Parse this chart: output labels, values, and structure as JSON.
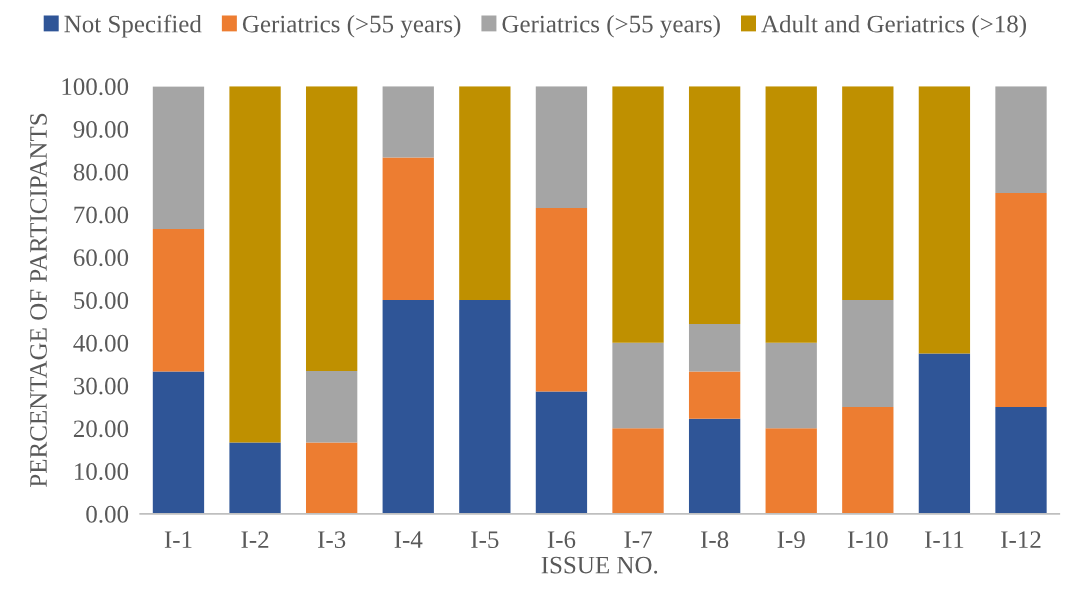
{
  "chart_data": {
    "type": "bar",
    "stacked": true,
    "xlabel": "ISSUE NO.",
    "ylabel": "PERCENTAGE OF PARTICIPANTS",
    "categories": [
      "I-1",
      "I-2",
      "I-3",
      "I-4",
      "I-5",
      "I-6",
      "I-7",
      "I-8",
      "I-9",
      "I-10",
      "I-11",
      "I-12"
    ],
    "series": [
      {
        "name": "Not Specified",
        "color": "#2f5597",
        "values": [
          33.3,
          16.7,
          null,
          50,
          50,
          28.6,
          null,
          22.2,
          null,
          null,
          37.5,
          25
        ]
      },
      {
        "name": "Geriatrics (>55 years)",
        "color": "#ed7d31",
        "values": [
          33.3,
          null,
          16.7,
          33.3,
          null,
          42.9,
          20,
          11.1,
          20,
          25,
          null,
          50
        ]
      },
      {
        "name": "Geriatrics (>55 years)",
        "color": "#a5a5a5",
        "values": [
          33.3,
          null,
          16.7,
          16.7,
          null,
          28.5,
          20,
          11.1,
          20,
          25,
          null,
          25
        ]
      },
      {
        "name": "Adult and Geriatrics (>18)",
        "color": "#bf9000",
        "values": [
          null,
          83.3,
          66.6,
          null,
          50,
          null,
          60,
          55.6,
          60,
          50,
          62.5,
          null
        ]
      }
    ],
    "ylim": [
      0,
      100
    ],
    "yticks": [
      {
        "value": 0,
        "label": "0.00"
      },
      {
        "value": 10,
        "label": "10.00"
      },
      {
        "value": 20,
        "label": "20.00"
      },
      {
        "value": 30,
        "label": "30.00"
      },
      {
        "value": 40,
        "label": "40.00"
      },
      {
        "value": 50,
        "label": "50.00"
      },
      {
        "value": 60,
        "label": "60.00"
      },
      {
        "value": 70,
        "label": "70.00"
      },
      {
        "value": 80,
        "label": "80.00"
      },
      {
        "value": 90,
        "label": "90.00"
      },
      {
        "value": 100,
        "label": "100.00"
      }
    ],
    "grid": false,
    "legend": "top"
  }
}
